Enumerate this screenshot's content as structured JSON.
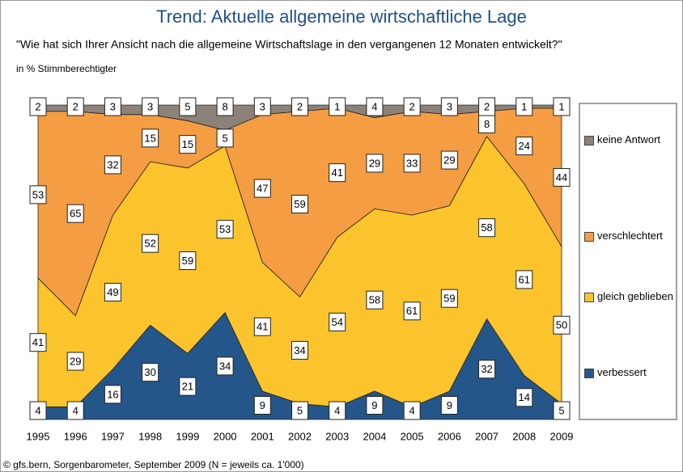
{
  "chart_data": {
    "type": "stacked_area",
    "title": "Trend: Aktuelle allgemeine wirtschaftliche Lage",
    "subtitle": "\"Wie hat sich Ihrer Ansicht nach die allgemeine Wirtschaftslage in den vergangenen 12 Monaten entwickelt?\"",
    "unit_label": "in % Stimmberechtigter",
    "source": "© gfs.bern, Sorgenbarometer, September 2009 (N = jeweils ca. 1'000)",
    "categories": [
      "1995",
      "1996",
      "1997",
      "1998",
      "1999",
      "2000",
      "2001",
      "2002",
      "2003",
      "2004",
      "2005",
      "2006",
      "2007",
      "2008",
      "2009"
    ],
    "series": [
      {
        "name": "verbessert",
        "color": "#25568a",
        "values": [
          4,
          4,
          16,
          30,
          21,
          34,
          9,
          5,
          4,
          9,
          4,
          9,
          32,
          14,
          5
        ]
      },
      {
        "name": "gleich geblieben",
        "color": "#fcc42c",
        "values": [
          41,
          29,
          49,
          52,
          59,
          53,
          41,
          34,
          54,
          58,
          61,
          59,
          58,
          61,
          50
        ]
      },
      {
        "name": "verschlechtert",
        "color": "#f59d42",
        "values": [
          53,
          65,
          32,
          15,
          15,
          5,
          47,
          59,
          41,
          29,
          33,
          29,
          8,
          24,
          44
        ]
      },
      {
        "name": "keine Antwort",
        "color": "#8c827a",
        "values": [
          2,
          2,
          3,
          3,
          5,
          8,
          3,
          2,
          1,
          4,
          2,
          3,
          2,
          1,
          1
        ]
      }
    ]
  }
}
